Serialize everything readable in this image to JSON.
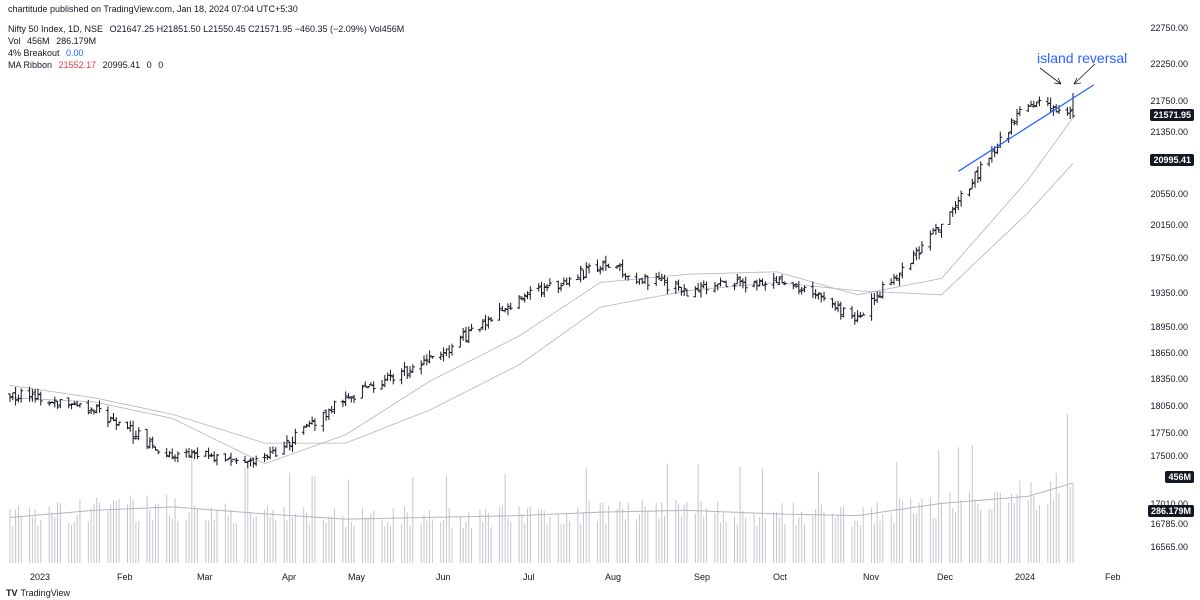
{
  "header": {
    "published": "chartitude published on TradingView.com, Jan 18, 2024 07:04 UTC+5:30",
    "symbol_line": "Nifty 50 Index, 1D, NSE",
    "ohlc": "O21647.25 H21851.50 L21550.45 C21571.95 −460.35 (−2.09%) Vol456M",
    "vol_label": "Vol",
    "vol_value": "456M",
    "vol_ma": "286.179M",
    "breakout_label": "4% Breakout",
    "breakout_value": "0.00",
    "ma_label": "MA Ribbon",
    "ma_values": [
      "21552.17",
      "20995.41",
      "0",
      "0"
    ]
  },
  "price_tags": {
    "last": "21571.95",
    "ma": "20995.41",
    "vol": "456M",
    "vol_ma": "286.179M"
  },
  "annotation": "island reversal",
  "footer_logo": "TradingView",
  "colors": {
    "bars": "#131722",
    "trendline": "#2962ff",
    "ma": "#b2b5be",
    "volume": "#c3c6ce",
    "ma_red": "#f23645",
    "blue": "#2962ff"
  },
  "chart_data": {
    "type": "ohlc",
    "title": "Nifty 50 Index, 1D, NSE",
    "y_ticks": [
      "22750.00",
      "22250.00",
      "21750.00",
      "21350.00",
      "20550.00",
      "20150.00",
      "19750.00",
      "19350.00",
      "18950.00",
      "18650.00",
      "18350.00",
      "18050.00",
      "17750.00",
      "17500.00",
      "17010.00",
      "16785.00",
      "16565.00"
    ],
    "x_ticks": [
      "2023",
      "Feb",
      "Mar",
      "Apr",
      "May",
      "Jun",
      "Jul",
      "Aug",
      "Sep",
      "Oct",
      "Nov",
      "Dec",
      "2024",
      "Feb"
    ],
    "anchors": {
      "x": [
        "2023-01-02",
        "2023-02-01",
        "2023-03-01",
        "2023-04-03",
        "2023-05-02",
        "2023-06-01",
        "2023-07-03",
        "2023-08-01",
        "2023-09-01",
        "2023-10-03",
        "2023-11-01",
        "2023-12-01",
        "2024-01-01",
        "2024-01-17"
      ],
      "close": [
        18200,
        18000,
        17450,
        17400,
        18150,
        18600,
        19350,
        19750,
        19450,
        19600,
        19130,
        20260,
        21750,
        21571.95
      ]
    },
    "ma_fast_anchors": [
      18150,
      18100,
      17900,
      17350,
      17700,
      18350,
      18900,
      19550,
      19650,
      19680,
      19400,
      19600,
      20800,
      21552.17
    ],
    "ma_slow_anchors": [
      18300,
      18150,
      17950,
      17600,
      17600,
      18000,
      18550,
      19250,
      19450,
      19550,
      19450,
      19400,
      20400,
      20995.41
    ],
    "volume_anchors_m": [
      260,
      300,
      320,
      280,
      250,
      260,
      270,
      290,
      300,
      280,
      270,
      340,
      380,
      456
    ],
    "last": {
      "date": "2024-01-17",
      "open": 21647.25,
      "high": 21851.5,
      "low": 21550.45,
      "close": 21571.95,
      "change": -460.35,
      "change_pct": -2.09,
      "volume_m": 456
    },
    "trendline": {
      "from": {
        "date": "2023-12-07",
        "value": 20900
      },
      "to": {
        "date": "2024-01-25",
        "value": 21950
      }
    },
    "volume_ma_m": 286.179
  }
}
